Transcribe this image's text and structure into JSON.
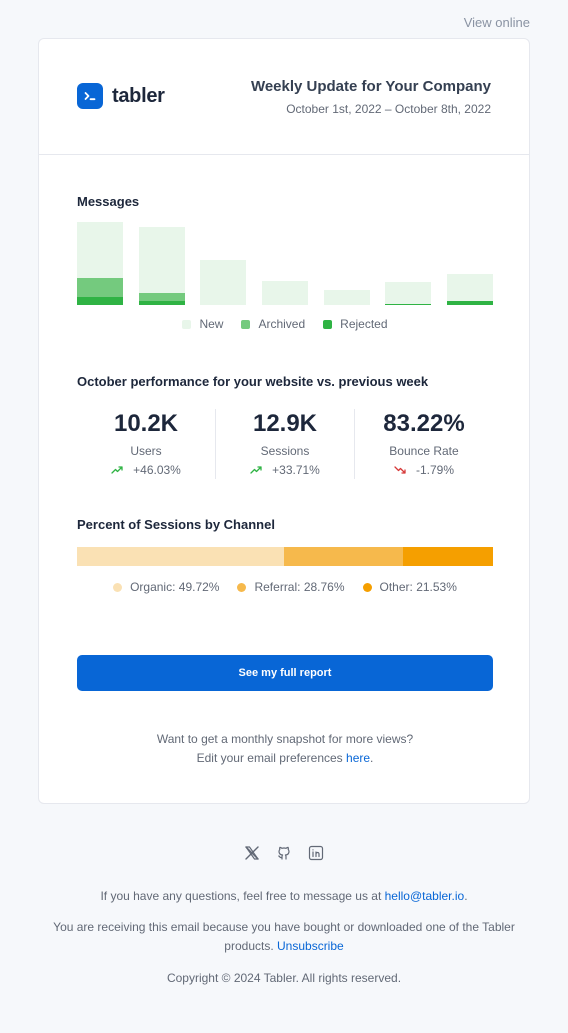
{
  "view_online": "View online",
  "brand": {
    "name": "tabler"
  },
  "header": {
    "title": "Weekly Update for Your Company",
    "date_range": "October 1st, 2022 – October 8th, 2022"
  },
  "messages": {
    "title": "Messages",
    "chart_data": {
      "type": "bar",
      "stacked": true,
      "categories": [
        "",
        "",
        "",
        "",
        "",
        "",
        ""
      ],
      "series": [
        {
          "name": "Rejected",
          "color": "#2fb344",
          "values": [
            8,
            4,
            0,
            0,
            0,
            1,
            4
          ]
        },
        {
          "name": "Archived",
          "color": "#74ca7e",
          "values": [
            18,
            7,
            0,
            0,
            0,
            0,
            0
          ]
        },
        {
          "name": "New",
          "color": "#e8f6ea",
          "values": [
            53,
            63,
            43,
            23,
            14,
            21,
            26
          ]
        }
      ],
      "ylim": [
        0,
        80
      ],
      "legend_position": "bottom"
    },
    "legend": [
      {
        "label": "New",
        "color": "#e8f6ea"
      },
      {
        "label": "Archived",
        "color": "#74ca7e"
      },
      {
        "label": "Rejected",
        "color": "#2fb344"
      }
    ]
  },
  "performance": {
    "title": "October performance for your website vs. previous week",
    "stats": [
      {
        "value": "10.2K",
        "label": "Users",
        "change": "+46.03%",
        "trend": "up",
        "trend_icon": "trending-up-icon",
        "color": "#2fb344"
      },
      {
        "value": "12.9K",
        "label": "Sessions",
        "change": "+33.71%",
        "trend": "up",
        "trend_icon": "trending-up-icon",
        "color": "#2fb344"
      },
      {
        "value": "83.22%",
        "label": "Bounce Rate",
        "change": "-1.79%",
        "trend": "down",
        "trend_icon": "trending-down-icon",
        "color": "#d63939"
      }
    ]
  },
  "channels": {
    "title": "Percent of Sessions by Channel",
    "chart_data": {
      "type": "bar",
      "orientation": "horizontal-stacked-100",
      "series": [
        {
          "name": "Organic",
          "value": 49.72,
          "color": "#fae1b4"
        },
        {
          "name": "Referral",
          "value": 28.76,
          "color": "#f6b94c"
        },
        {
          "name": "Other",
          "value": 21.53,
          "color": "#f59f00"
        }
      ]
    },
    "legend": [
      {
        "label": "Organic: 49.72%",
        "color": "#fae1b4"
      },
      {
        "label": "Referral: 28.76%",
        "color": "#f6b94c"
      },
      {
        "label": "Other: 21.53%",
        "color": "#f59f00"
      }
    ]
  },
  "cta": {
    "label": "See my full report"
  },
  "snapshot": {
    "line1": "Want to get a monthly snapshot for more views?",
    "line2_prefix": "Edit your email preferences ",
    "line2_link": "here",
    "line2_suffix": "."
  },
  "socials": [
    {
      "name": "x-icon"
    },
    {
      "name": "github-icon"
    },
    {
      "name": "linkedin-icon"
    }
  ],
  "footer": {
    "questions_prefix": "If you have any questions, feel free to message us at ",
    "questions_email": "hello@tabler.io",
    "questions_suffix": ".",
    "receiving_prefix": "You are receiving this email because you have bought or downloaded one of the Tabler products. ",
    "unsubscribe": "Unsubscribe",
    "copyright": "Copyright © 2024 Tabler. All rights reserved."
  },
  "colors": {
    "primary": "#0866d6",
    "success": "#2fb344",
    "danger": "#d63939"
  }
}
